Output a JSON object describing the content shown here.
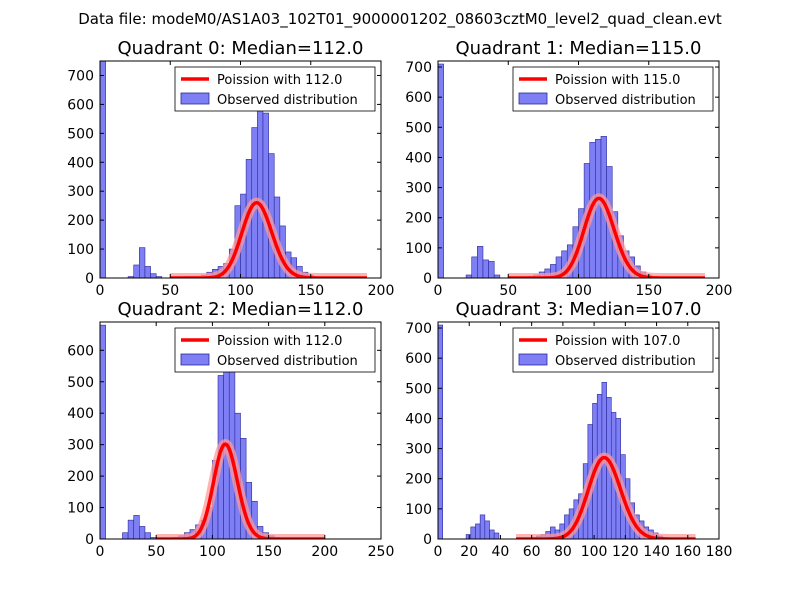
{
  "figure": {
    "suptitle": "Data file: modeM0/AS1A03_102T01_9000001202_08603cztM0_level2_quad_clean.evt"
  },
  "colors": {
    "bar_fill": "#7f7ff5",
    "bar_edge": "#2a2a9a",
    "curve": "#ff0000",
    "curve_glow": "#ff9a9a"
  },
  "chart_data": [
    {
      "type": "bar",
      "title": "Quadrant 0: Median=112.0",
      "xlim": [
        0,
        200
      ],
      "ylim": [
        0,
        750
      ],
      "xticks": [
        0,
        50,
        100,
        150,
        200
      ],
      "yticks": [
        0,
        100,
        200,
        300,
        400,
        500,
        600,
        700
      ],
      "bin_width": 4,
      "bins": [
        [
          0,
          750
        ],
        [
          20,
          5
        ],
        [
          24,
          45
        ],
        [
          28,
          105
        ],
        [
          32,
          40
        ],
        [
          36,
          15
        ],
        [
          40,
          5
        ],
        [
          60,
          5
        ],
        [
          64,
          5
        ],
        [
          68,
          5
        ],
        [
          72,
          10
        ],
        [
          76,
          20
        ],
        [
          80,
          30
        ],
        [
          84,
          40
        ],
        [
          88,
          50
        ],
        [
          92,
          100
        ],
        [
          96,
          250
        ],
        [
          100,
          290
        ],
        [
          104,
          410
        ],
        [
          108,
          520
        ],
        [
          112,
          580
        ],
        [
          116,
          570
        ],
        [
          120,
          430
        ],
        [
          124,
          280
        ],
        [
          128,
          180
        ],
        [
          132,
          90
        ],
        [
          136,
          70
        ],
        [
          140,
          40
        ],
        [
          144,
          20
        ],
        [
          148,
          10
        ],
        [
          152,
          5
        ],
        [
          156,
          3
        ],
        [
          160,
          2
        ]
      ],
      "curve": {
        "mean": 112.0,
        "scale": 6900,
        "x_range": [
          50,
          190
        ]
      },
      "legend": {
        "curve_label": "Poission with 112.0",
        "bars_label": "Observed distribution",
        "position": "top-right"
      }
    },
    {
      "type": "bar",
      "title": "Quadrant 1: Median=115.0",
      "xlim": [
        0,
        200
      ],
      "ylim": [
        0,
        720
      ],
      "xticks": [
        0,
        50,
        100,
        150,
        200
      ],
      "yticks": [
        0,
        100,
        200,
        300,
        400,
        500,
        600,
        700
      ],
      "bin_width": 4,
      "bins": [
        [
          0,
          710
        ],
        [
          20,
          10
        ],
        [
          24,
          70
        ],
        [
          28,
          105
        ],
        [
          32,
          60
        ],
        [
          36,
          55
        ],
        [
          40,
          10
        ],
        [
          64,
          5
        ],
        [
          68,
          10
        ],
        [
          72,
          20
        ],
        [
          76,
          30
        ],
        [
          80,
          45
        ],
        [
          84,
          70
        ],
        [
          88,
          90
        ],
        [
          92,
          110
        ],
        [
          96,
          170
        ],
        [
          100,
          230
        ],
        [
          104,
          380
        ],
        [
          108,
          450
        ],
        [
          112,
          460
        ],
        [
          116,
          470
        ],
        [
          120,
          370
        ],
        [
          124,
          220
        ],
        [
          128,
          140
        ],
        [
          132,
          90
        ],
        [
          136,
          70
        ],
        [
          140,
          40
        ],
        [
          144,
          20
        ],
        [
          148,
          10
        ],
        [
          152,
          5
        ],
        [
          156,
          3
        ]
      ],
      "curve": {
        "mean": 115.0,
        "scale": 7100,
        "x_range": [
          50,
          190
        ]
      },
      "legend": {
        "curve_label": "Poission with 115.0",
        "bars_label": "Observed distribution",
        "position": "top-right"
      }
    },
    {
      "type": "bar",
      "title": "Quadrant 2: Median=112.0",
      "xlim": [
        0,
        250
      ],
      "ylim": [
        0,
        690
      ],
      "xticks": [
        0,
        50,
        100,
        150,
        200,
        250
      ],
      "yticks": [
        0,
        100,
        200,
        300,
        400,
        500,
        600
      ],
      "bin_width": 5,
      "bins": [
        [
          0,
          680
        ],
        [
          20,
          20
        ],
        [
          25,
          60
        ],
        [
          30,
          75
        ],
        [
          35,
          40
        ],
        [
          40,
          20
        ],
        [
          45,
          5
        ],
        [
          65,
          5
        ],
        [
          70,
          10
        ],
        [
          75,
          20
        ],
        [
          80,
          30
        ],
        [
          85,
          45
        ],
        [
          90,
          60
        ],
        [
          95,
          100
        ],
        [
          100,
          250
        ],
        [
          105,
          520
        ],
        [
          110,
          550
        ],
        [
          115,
          560
        ],
        [
          120,
          400
        ],
        [
          125,
          320
        ],
        [
          130,
          180
        ],
        [
          135,
          120
        ],
        [
          140,
          40
        ],
        [
          145,
          20
        ],
        [
          150,
          10
        ],
        [
          155,
          5
        ],
        [
          160,
          3
        ]
      ],
      "curve": {
        "mean": 112.0,
        "scale": 8000,
        "x_range": [
          50,
          200
        ]
      },
      "legend": {
        "curve_label": "Poission with 112.0",
        "bars_label": "Observed distribution",
        "position": "top-right"
      }
    },
    {
      "type": "bar",
      "title": "Quadrant 3: Median=107.0",
      "xlim": [
        0,
        180
      ],
      "ylim": [
        0,
        720
      ],
      "xticks": [
        0,
        20,
        40,
        60,
        80,
        100,
        120,
        140,
        160,
        180
      ],
      "yticks": [
        0,
        100,
        200,
        300,
        400,
        500,
        600,
        700
      ],
      "bin_width": 3,
      "bins": [
        [
          0,
          710
        ],
        [
          18,
          15
        ],
        [
          21,
          40
        ],
        [
          24,
          50
        ],
        [
          27,
          80
        ],
        [
          30,
          60
        ],
        [
          33,
          30
        ],
        [
          36,
          20
        ],
        [
          60,
          5
        ],
        [
          63,
          10
        ],
        [
          66,
          15
        ],
        [
          69,
          25
        ],
        [
          72,
          40
        ],
        [
          75,
          30
        ],
        [
          78,
          50
        ],
        [
          81,
          80
        ],
        [
          84,
          100
        ],
        [
          87,
          130
        ],
        [
          90,
          150
        ],
        [
          93,
          250
        ],
        [
          96,
          380
        ],
        [
          99,
          450
        ],
        [
          102,
          480
        ],
        [
          105,
          520
        ],
        [
          108,
          470
        ],
        [
          111,
          420
        ],
        [
          114,
          400
        ],
        [
          117,
          280
        ],
        [
          120,
          200
        ],
        [
          123,
          120
        ],
        [
          126,
          80
        ],
        [
          129,
          60
        ],
        [
          132,
          40
        ],
        [
          135,
          30
        ],
        [
          138,
          20
        ],
        [
          141,
          10
        ],
        [
          144,
          5
        ],
        [
          147,
          3
        ]
      ],
      "curve": {
        "mean": 107.0,
        "scale": 7000,
        "x_range": [
          50,
          165
        ]
      },
      "legend": {
        "curve_label": "Poission with 107.0",
        "bars_label": "Observed distribution",
        "position": "top-right"
      }
    }
  ]
}
